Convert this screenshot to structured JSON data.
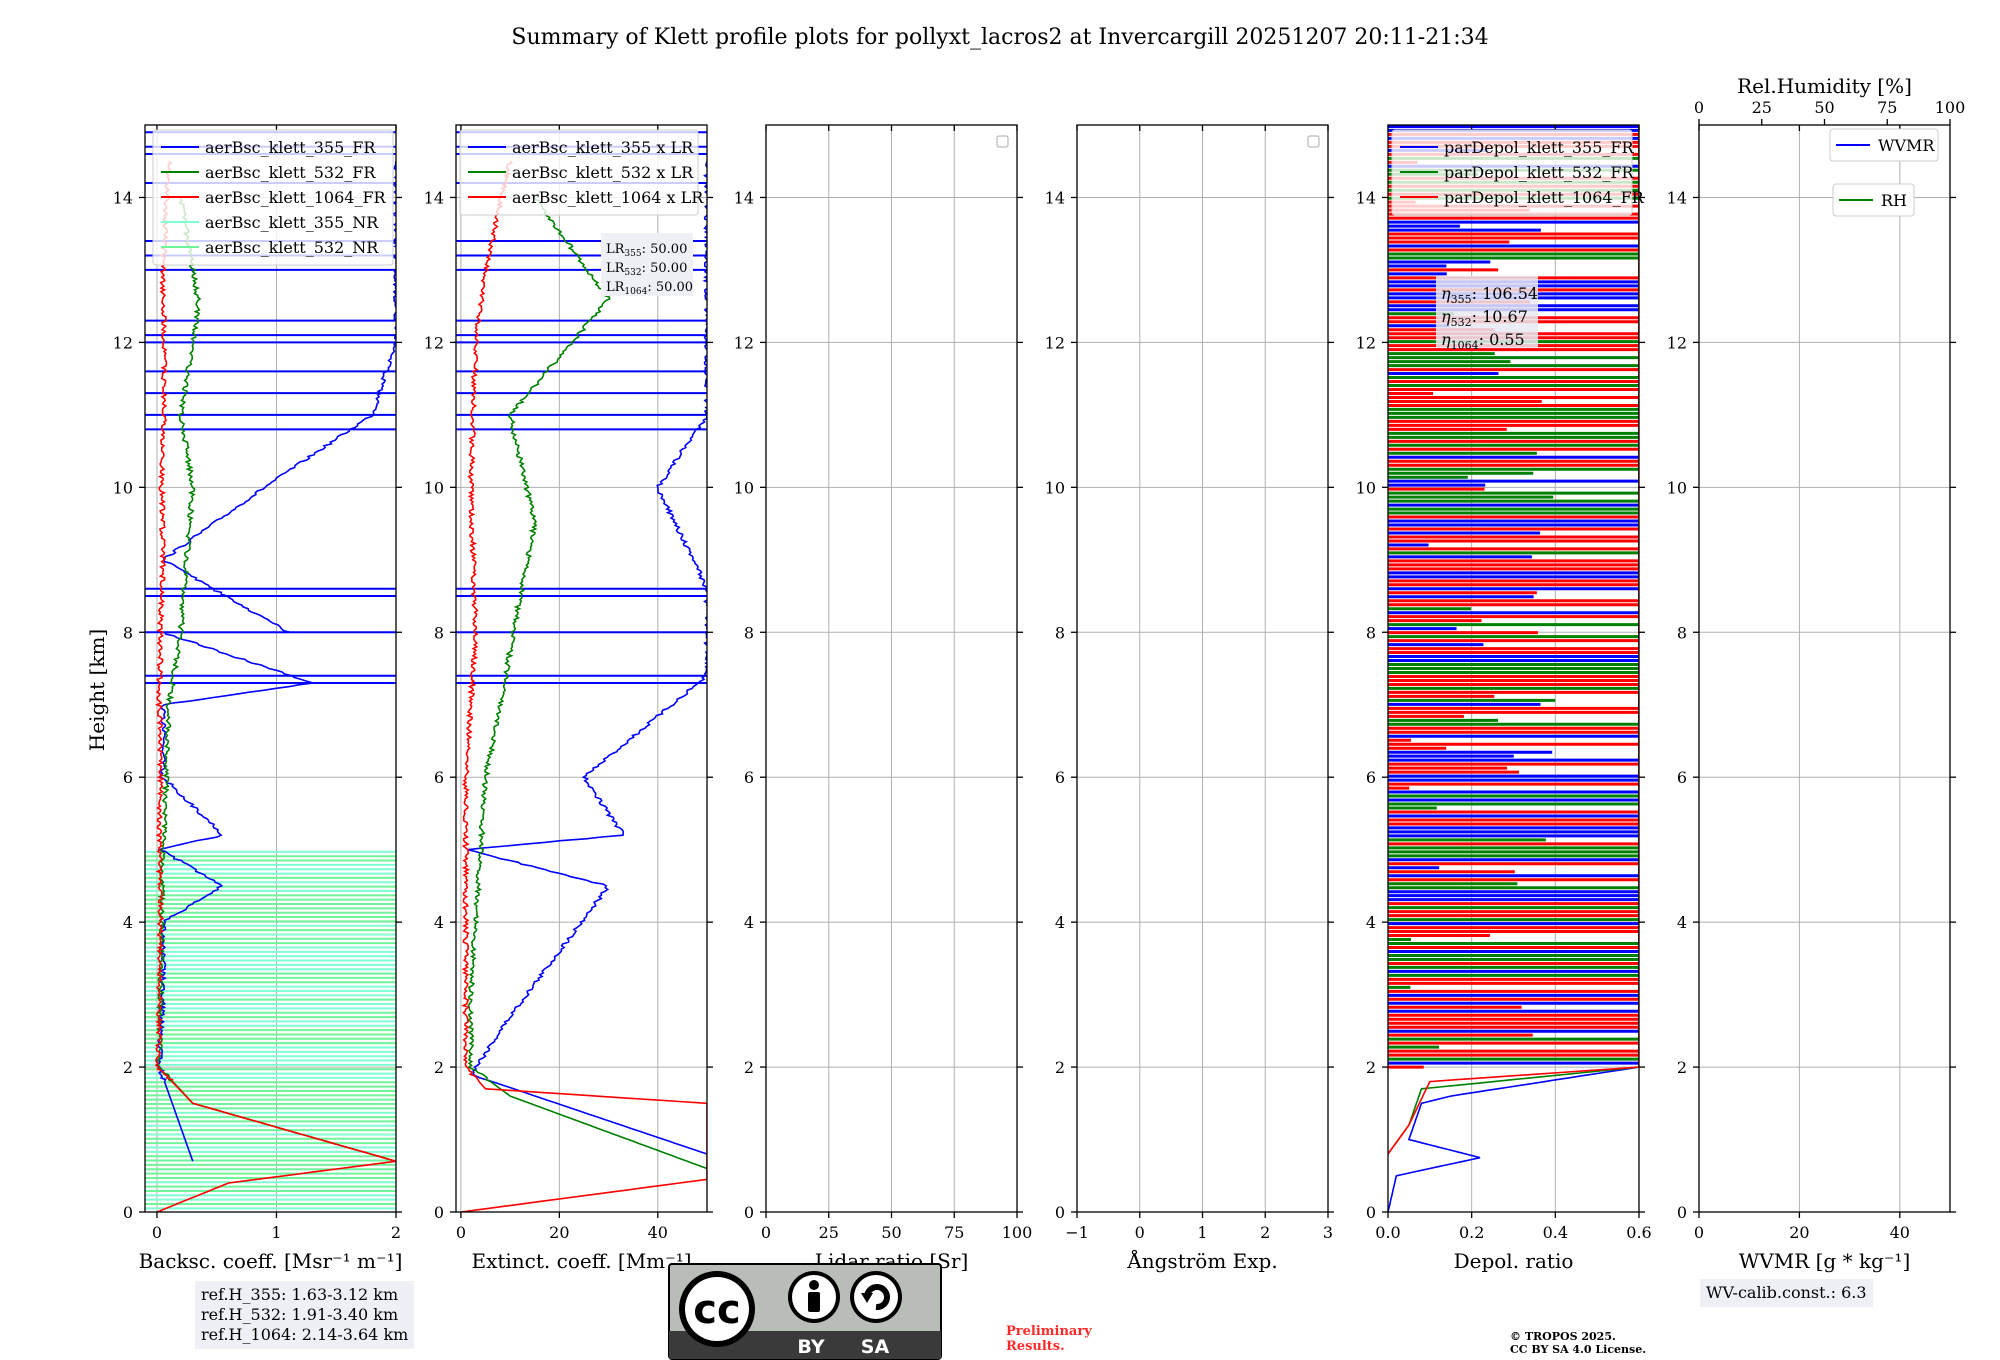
{
  "title": "Summary of Klett profile plots for pollyxt_lacros2 at Invercargill 20251207 20:11-21:34",
  "colors": {
    "ch355": "#0000ff",
    "ch532": "#008000",
    "ch1064": "#ff0000",
    "nr355": "#7fffd4",
    "nr532": "#6ef59a"
  },
  "ylabel": "Height [km]",
  "yticks": [
    "0",
    "2",
    "4",
    "6",
    "8",
    "10",
    "12",
    "14"
  ],
  "ylim": [
    0,
    15
  ],
  "panels": [
    {
      "id": "bsc",
      "xlabel": "Backsc. coeff. [Msr⁻¹ m⁻¹]",
      "xlim": [
        -0.1,
        2
      ],
      "xticks": [
        {
          "v": 0,
          "t": "0"
        },
        {
          "v": 1,
          "t": "1"
        },
        {
          "v": 2,
          "t": "2"
        }
      ],
      "legend": [
        "aerBsc_klett_355_FR",
        "aerBsc_klett_532_FR",
        "aerBsc_klett_1064_FR",
        "aerBsc_klett_355_NR",
        "aerBsc_klett_532_NR"
      ]
    },
    {
      "id": "ext",
      "xlabel": "Extinct. coeff. [Mm⁻¹]",
      "xlim": [
        -1,
        50
      ],
      "xticks": [
        {
          "v": 0,
          "t": "0"
        },
        {
          "v": 20,
          "t": "20"
        },
        {
          "v": 40,
          "t": "40"
        }
      ],
      "legend": [
        "aerBsc_klett_355 x LR",
        "aerBsc_klett_532 x LR",
        "aerBsc_klett_1064 x LR"
      ],
      "lr_box": [
        "LR",
        "355",
        ": 50.00",
        "LR",
        "532",
        ": 50.00",
        "LR",
        "1064",
        ": 50.00"
      ]
    },
    {
      "id": "lr",
      "xlabel": "Lidar ratio [Sr]",
      "xlim": [
        0,
        100
      ],
      "xticks": [
        {
          "v": 0,
          "t": "0"
        },
        {
          "v": 25,
          "t": "25"
        },
        {
          "v": 50,
          "t": "50"
        },
        {
          "v": 75,
          "t": "75"
        },
        {
          "v": 100,
          "t": "100"
        }
      ]
    },
    {
      "id": "ang",
      "xlabel": "Ångström Exp.",
      "xlim": [
        -1,
        3
      ],
      "xticks": [
        {
          "v": -1,
          "t": "−1"
        },
        {
          "v": 0,
          "t": "0"
        },
        {
          "v": 1,
          "t": "1"
        },
        {
          "v": 2,
          "t": "2"
        },
        {
          "v": 3,
          "t": "3"
        }
      ]
    },
    {
      "id": "dep",
      "xlabel": "Depol. ratio",
      "xlim": [
        0,
        0.6
      ],
      "xticks": [
        {
          "v": 0,
          "t": "0.0"
        },
        {
          "v": 0.2,
          "t": "0.2"
        },
        {
          "v": 0.4,
          "t": "0.4"
        },
        {
          "v": 0.6,
          "t": "0.6"
        }
      ],
      "legend": [
        "parDepol_klett_355_FR",
        "parDepol_klett_532_FR",
        "parDepol_klett_1064_FR"
      ],
      "eta": [
        [
          "η",
          "355",
          ": 106.54"
        ],
        [
          "η",
          "532",
          ": 10.67"
        ],
        [
          "η",
          "1064",
          ": 0.55"
        ]
      ]
    },
    {
      "id": "wv",
      "xlabel": "WVMR [g * kg⁻¹]",
      "xlim": [
        0,
        50
      ],
      "xticks": [
        {
          "v": 0,
          "t": "0"
        },
        {
          "v": 20,
          "t": "20"
        },
        {
          "v": 40,
          "t": "40"
        }
      ],
      "top_label": "Rel.Humidity [%]",
      "top_ticks": [
        "0",
        "25",
        "50",
        "75",
        "100"
      ],
      "legend": [
        "WVMR",
        "RH"
      ]
    }
  ],
  "ref_heights": [
    "ref.H_355: 1.63-3.12 km",
    "ref.H_532: 1.91-3.40 km",
    "ref.H_1064: 2.14-3.64 km"
  ],
  "wv_calib": "WV-calib.const.: 6.3",
  "cc_badge": [
    "cc",
    "BY",
    "SA"
  ],
  "preliminary": [
    "Preliminary",
    "Results."
  ],
  "copyright": [
    "© TROPOS 2025.",
    "CC BY SA 4.0 License."
  ],
  "chart_data": [
    {
      "type": "line",
      "title": "Summary of Klett profile plots for pollyxt_lacros2 at Invercargill 20251207 20:11-21:34",
      "xlabel": "Backsc. coeff. [Msr⁻¹ m⁻¹]",
      "ylabel": "Height [km]",
      "xlim": [
        -0.1,
        2
      ],
      "ylim": [
        0,
        15
      ],
      "series": [
        {
          "name": "aerBsc_klett_355_FR",
          "points": [
            [
              0.3,
              0.7
            ],
            [
              0.02,
              2.0
            ],
            [
              0.05,
              3.0
            ],
            [
              0.05,
              4.0
            ],
            [
              0.55,
              4.5
            ],
            [
              0.03,
              5.0
            ],
            [
              0.55,
              5.2
            ],
            [
              0.05,
              6.0
            ],
            [
              0.05,
              7.0
            ],
            [
              1.3,
              7.3
            ],
            [
              0.05,
              8.0
            ],
            [
              1.1,
              8.0
            ],
            [
              0.05,
              9.0
            ],
            [
              0.9,
              10.0
            ],
            [
              1.8,
              11.0
            ],
            [
              2.0,
              12.0
            ],
            [
              2.0,
              13.5
            ],
            [
              2.0,
              14.5
            ]
          ]
        },
        {
          "name": "aerBsc_klett_532_FR",
          "points": [
            [
              2.0,
              0.7
            ],
            [
              0.3,
              1.5
            ],
            [
              0.02,
              2.0
            ],
            [
              0.03,
              3.0
            ],
            [
              0.04,
              4.0
            ],
            [
              0.05,
              5.0
            ],
            [
              0.08,
              6.0
            ],
            [
              0.1,
              7.0
            ],
            [
              0.2,
              8.0
            ],
            [
              0.25,
              9.0
            ],
            [
              0.3,
              10.0
            ],
            [
              0.2,
              11.0
            ],
            [
              0.35,
              12.5
            ],
            [
              0.2,
              14.0
            ]
          ]
        },
        {
          "name": "aerBsc_klett_1064_FR",
          "points": [
            [
              0.0,
              0.0
            ],
            [
              0.6,
              0.4
            ],
            [
              2.0,
              0.7
            ],
            [
              0.3,
              1.5
            ],
            [
              0.01,
              2.0
            ],
            [
              0.02,
              3.0
            ],
            [
              0.03,
              4.0
            ],
            [
              0.02,
              5.0
            ],
            [
              0.03,
              6.0
            ],
            [
              0.02,
              7.0
            ],
            [
              0.03,
              8.0
            ],
            [
              0.05,
              9.0
            ],
            [
              0.04,
              10.0
            ],
            [
              0.06,
              11.0
            ],
            [
              0.06,
              12.0
            ],
            [
              0.05,
              13.0
            ],
            [
              0.1,
              14.5
            ]
          ]
        },
        {
          "name": "aerBsc_klett_355_NR",
          "range_km": [
            0.5,
            5.0
          ]
        },
        {
          "name": "aerBsc_klett_532_NR",
          "range_km": [
            0.0,
            5.0
          ]
        }
      ]
    },
    {
      "type": "line",
      "xlabel": "Extinct. coeff. [Mm⁻¹]",
      "ylabel": "Height [km]",
      "xlim": [
        -1,
        50
      ],
      "ylim": [
        0,
        15
      ],
      "series": [
        {
          "name": "aerBsc_klett_355 x LR",
          "points": [
            [
              50,
              0.8
            ],
            [
              2,
              1.9
            ],
            [
              10,
              2.7
            ],
            [
              30,
              4.5
            ],
            [
              1,
              5.0
            ],
            [
              33,
              5.2
            ],
            [
              25,
              6.0
            ],
            [
              50,
              7.4
            ],
            [
              50,
              8.0
            ],
            [
              50,
              8.6
            ],
            [
              40,
              10.0
            ],
            [
              50,
              11.0
            ],
            [
              50,
              12.0
            ],
            [
              50,
              13.0
            ],
            [
              50,
              14.5
            ]
          ]
        },
        {
          "name": "aerBsc_klett_532 x LR",
          "points": [
            [
              50,
              0.6
            ],
            [
              10,
              1.6
            ],
            [
              2,
              2.0
            ],
            [
              2,
              3.0
            ],
            [
              3,
              4.0
            ],
            [
              4,
              5.0
            ],
            [
              5,
              6.0
            ],
            [
              8,
              7.0
            ],
            [
              12,
              8.5
            ],
            [
              15,
              9.5
            ],
            [
              10,
              11.0
            ],
            [
              30,
              12.6
            ],
            [
              15,
              14.0
            ]
          ]
        },
        {
          "name": "aerBsc_klett_1064 x LR",
          "points": [
            [
              0,
              0.0
            ],
            [
              50,
              0.45
            ],
            [
              50,
              1.5
            ],
            [
              5,
              1.7
            ],
            [
              1,
              2.0
            ],
            [
              1,
              4.0
            ],
            [
              1,
              6.0
            ],
            [
              3,
              8.0
            ],
            [
              2,
              10.0
            ],
            [
              3,
              12.0
            ],
            [
              5,
              13.0
            ],
            [
              10,
              14.5
            ]
          ]
        }
      ],
      "annotations": [
        "LR355: 50.00",
        "LR532: 50.00",
        "LR1064: 50.00"
      ]
    },
    {
      "type": "line",
      "xlabel": "Lidar ratio [Sr]",
      "ylabel": "Height [km]",
      "xlim": [
        0,
        100
      ],
      "ylim": [
        0,
        15
      ],
      "series": []
    },
    {
      "type": "line",
      "xlabel": "Ångström Exp.",
      "ylabel": "Height [km]",
      "xlim": [
        -1,
        3
      ],
      "ylim": [
        0,
        15
      ],
      "series": []
    },
    {
      "type": "line",
      "xlabel": "Depol. ratio",
      "ylabel": "Height [km]",
      "xlim": [
        0,
        0.6
      ],
      "ylim": [
        0,
        15
      ],
      "series": [
        {
          "name": "parDepol_klett_355_FR",
          "points": [
            [
              0.0,
              0.0
            ],
            [
              0.02,
              0.5
            ],
            [
              0.22,
              0.75
            ],
            [
              0.05,
              1.0
            ],
            [
              0.08,
              1.5
            ],
            [
              0.15,
              1.6
            ],
            [
              0.6,
              2.0
            ],
            [
              0.6,
              15.0
            ]
          ]
        },
        {
          "name": "parDepol_klett_532_FR",
          "points": [
            [
              0.0,
              0.8
            ],
            [
              0.05,
              1.2
            ],
            [
              0.08,
              1.7
            ],
            [
              0.6,
              2.0
            ],
            [
              0.6,
              15.0
            ]
          ]
        },
        {
          "name": "parDepol_klett_1064_FR",
          "points": [
            [
              0.0,
              0.8
            ],
            [
              0.05,
              1.2
            ],
            [
              0.1,
              1.8
            ],
            [
              0.6,
              2.0
            ],
            [
              0.6,
              15.0
            ]
          ]
        }
      ],
      "annotations": [
        "η355: 106.54",
        "η532: 10.67",
        "η1064: 0.55"
      ]
    },
    {
      "type": "line",
      "xlabel": "WVMR [g * kg⁻¹]",
      "ylabel": "Height [km]",
      "xlim": [
        0,
        50
      ],
      "ylim": [
        0,
        15
      ],
      "secondary_x": {
        "label": "Rel.Humidity [%]",
        "lim": [
          0,
          100
        ]
      },
      "series": [
        {
          "name": "WVMR",
          "points": []
        },
        {
          "name": "RH",
          "points": []
        }
      ]
    }
  ]
}
